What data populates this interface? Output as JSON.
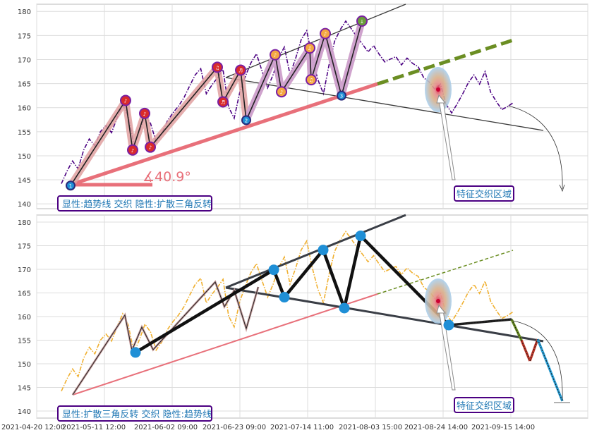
{
  "chart_data": [
    {
      "type": "line",
      "panel": "top",
      "y_ticks": [
        140,
        145,
        150,
        155,
        160,
        165,
        170,
        175,
        180
      ],
      "ylim": [
        139,
        181.5
      ],
      "x_ticks": [
        "2021-04-20 12:00",
        "2021-05-11 12:00",
        "2021-06-02 09:00",
        "2021-06-23 09:00",
        "2021-07-14 11:00",
        "2021-08-03 15:00",
        "2021-08-24 14:00",
        "2021-09-15 14:00"
      ],
      "series": [
        {
          "style": "dash-dot",
          "color": "#4b0082",
          "values": [
            144.2,
            146.8,
            148.9,
            147.3,
            151.2,
            153.5,
            152.1,
            155.0,
            156.3,
            154.8,
            157.9,
            160.6,
            158.2,
            152.4,
            155.1,
            158.4,
            156.7,
            152.9,
            154.6,
            157.2,
            158.9,
            160.3,
            162.1,
            164.5,
            166.8,
            168.1,
            162.9,
            164.7,
            166.2,
            167.9,
            160.1,
            157.8,
            163.2,
            166.5,
            169.3,
            171.2,
            167.6,
            164.1,
            166.9,
            170.4,
            172.6,
            166.9,
            170.2,
            174.1,
            176.0,
            170.3,
            165.8,
            162.9,
            168.9,
            173.8,
            176.2,
            178.0,
            176.4,
            174.7,
            173.2,
            171.6,
            172.9,
            171.1,
            169.5,
            170.1,
            170.6,
            168.9,
            170.3,
            169.2,
            168.5,
            166.2,
            165.3,
            163.8,
            164.9,
            160.7,
            158.9,
            160.8,
            162.9,
            165.2,
            166.8,
            164.9,
            167.5,
            163.2,
            161.3,
            159.6,
            160.2,
            161.0
          ]
        }
      ],
      "patterns": [
        {
          "name": "趋势线 + 扩散三角",
          "pivots": [
            {
              "label": "1",
              "value": 143.8
            },
            {
              "label": "♪",
              "value": 161.5
            },
            {
              "label": "♪",
              "value": 151.2
            },
            {
              "label": "♪",
              "value": 158.8
            },
            {
              "label": "♪",
              "value": 151.8
            },
            {
              "label": "♫",
              "value": 168.4
            },
            {
              "label": "♬",
              "value": 161.2
            },
            {
              "label": "♬",
              "value": 167.8
            },
            {
              "label": "2",
              "value": 157.4
            },
            {
              "label": "♪",
              "value": 171.0
            },
            {
              "label": "♪",
              "value": 163.3
            },
            {
              "label": "♫",
              "value": 172.4
            },
            {
              "label": "♫",
              "value": 165.8
            },
            {
              "label": "♪",
              "value": 175.4
            },
            {
              "label": "3",
              "value": 162.5
            },
            {
              "label": "↓",
              "value": 178.0
            }
          ]
        }
      ],
      "angle_label": "∡40.9°",
      "region_label": "特征交织区域",
      "legend": "显性:趋势线 交织 隐性:扩散三角反转"
    },
    {
      "type": "line",
      "panel": "bottom",
      "y_ticks": [
        140,
        145,
        150,
        155,
        160,
        165,
        170,
        175,
        180
      ],
      "ylim": [
        138.5,
        181.5
      ],
      "x_ticks": [
        "2021-04-20 12:00",
        "2021-05-11 12:00",
        "2021-06-02 09:00",
        "2021-06-23 09:00",
        "2021-07-14 11:00",
        "2021-08-03 15:00",
        "2021-08-24 14:00",
        "2021-09-15 14:00"
      ],
      "series": [
        {
          "style": "dash-dot",
          "color": "#f0b030",
          "values": [
            144.2,
            146.8,
            148.9,
            147.3,
            151.2,
            153.5,
            152.1,
            155.0,
            156.3,
            154.8,
            157.9,
            160.6,
            158.2,
            152.4,
            155.1,
            158.4,
            156.7,
            152.9,
            154.6,
            157.2,
            158.9,
            160.3,
            162.1,
            164.5,
            166.8,
            168.1,
            162.9,
            164.7,
            166.2,
            167.9,
            160.1,
            157.8,
            163.2,
            166.5,
            169.3,
            171.2,
            167.6,
            164.1,
            166.9,
            170.4,
            172.6,
            166.9,
            170.2,
            174.1,
            176.0,
            170.3,
            165.8,
            162.9,
            168.9,
            173.8,
            176.2,
            178.0,
            176.4,
            174.7,
            173.2,
            171.6,
            172.9,
            171.1,
            169.5,
            170.1,
            170.6,
            168.9,
            170.3,
            169.2,
            168.5,
            166.2,
            165.3,
            163.8,
            164.9,
            160.7,
            158.9,
            160.8,
            162.9,
            165.2,
            166.8,
            164.9,
            167.5,
            163.2,
            161.3,
            159.6,
            160.2,
            161.0
          ]
        }
      ],
      "patterns": [
        {
          "name": "扩散三角反转",
          "pivots": [
            {
              "value": 152.4
            },
            {
              "value": 169.9
            },
            {
              "value": 164.1
            },
            {
              "value": 174.1
            },
            {
              "value": 161.8
            },
            {
              "value": 177.1
            },
            {
              "value": 158.2
            }
          ]
        }
      ],
      "forecast": [
        {
          "value": 158.2
        },
        {
          "value": 159.4
        },
        {
          "value": 155.0
        },
        {
          "value": 150.6
        },
        {
          "value": 155.2
        },
        {
          "value": 142.1
        }
      ],
      "region_label": "特征交织区域",
      "legend": "显性:扩散三角反转 交织 隐性:趋势线"
    }
  ]
}
